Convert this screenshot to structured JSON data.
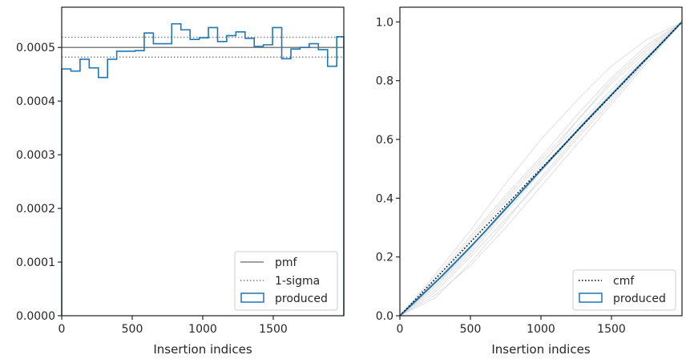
{
  "chart_data": [
    {
      "type": "line",
      "xlabel": "Insertion indices",
      "ylabel": "",
      "xlim": [
        0,
        2000
      ],
      "ylim": [
        0,
        0.000575
      ],
      "xticks": [
        0,
        500,
        1000,
        1500
      ],
      "yticks": [
        0.0,
        0.0001,
        0.0002,
        0.0003,
        0.0004,
        0.0005
      ],
      "ytick_labels": [
        "0.0000",
        "0.0001",
        "0.0002",
        "0.0003",
        "0.0004",
        "0.0005"
      ],
      "legend_position": "lower-right",
      "legend": [
        {
          "label": "pmf",
          "style": "solid",
          "color": "#808080"
        },
        {
          "label": "1-sigma",
          "style": "dotted",
          "color": "#808080"
        },
        {
          "label": "produced",
          "style": "step-patch",
          "color": "#1f77b4"
        }
      ],
      "pmf": 0.0005,
      "sigma_band": [
        0.000482,
        0.000519
      ],
      "histogram": {
        "bin_edges": [
          0,
          65,
          130,
          195,
          260,
          325,
          390,
          455,
          520,
          585,
          650,
          715,
          780,
          845,
          910,
          975,
          1040,
          1105,
          1170,
          1235,
          1300,
          1365,
          1430,
          1495,
          1560,
          1625,
          1690,
          1755,
          1820,
          1885,
          1950,
          2000
        ],
        "values": [
          0.00046,
          0.000456,
          0.000478,
          0.000462,
          0.000444,
          0.000478,
          0.000493,
          0.000493,
          0.000494,
          0.000527,
          0.000507,
          0.000507,
          0.000544,
          0.000533,
          0.000515,
          0.000518,
          0.000537,
          0.000511,
          0.000522,
          0.000529,
          0.000517,
          0.000502,
          0.000505,
          0.000537,
          0.000479,
          0.000497,
          0.0005,
          0.000507,
          0.000496,
          0.000465,
          0.00052
        ],
        "color": "#1f77b4"
      }
    },
    {
      "type": "line",
      "xlabel": "Insertion indices",
      "ylabel": "",
      "xlim": [
        0,
        2000
      ],
      "ylim": [
        0,
        1.05
      ],
      "xticks": [
        0,
        500,
        1000,
        1500
      ],
      "yticks": [
        0.0,
        0.2,
        0.4,
        0.6,
        0.8,
        1.0
      ],
      "ytick_labels": [
        "0.0",
        "0.2",
        "0.4",
        "0.6",
        "0.8",
        "1.0"
      ],
      "legend_position": "lower-right",
      "legend": [
        {
          "label": "cmf",
          "style": "dotted",
          "color": "#000000"
        },
        {
          "label": "produced",
          "style": "patch",
          "color": "#1f77b4"
        }
      ],
      "cmf": {
        "x": [
          0,
          2000
        ],
        "y": [
          0,
          1
        ]
      },
      "produced": {
        "x": [
          0,
          100,
          200,
          300,
          400,
          500,
          600,
          700,
          800,
          900,
          1000,
          1100,
          1200,
          1300,
          1400,
          1500,
          1600,
          1700,
          1800,
          1900,
          2000
        ],
        "y": [
          0,
          0.045,
          0.09,
          0.136,
          0.185,
          0.234,
          0.285,
          0.338,
          0.39,
          0.443,
          0.496,
          0.548,
          0.6,
          0.652,
          0.702,
          0.752,
          0.802,
          0.852,
          0.9,
          0.95,
          1.0
        ],
        "color": "#1f77b4"
      },
      "background_curves": {
        "color": "#d3d3d3",
        "x": [
          0,
          250,
          500,
          750,
          1000,
          1250,
          1500,
          1750,
          2000
        ],
        "curves": [
          [
            0,
            0.14,
            0.29,
            0.45,
            0.6,
            0.73,
            0.85,
            0.94,
            1
          ],
          [
            0,
            0.1,
            0.22,
            0.36,
            0.5,
            0.63,
            0.76,
            0.88,
            1
          ],
          [
            0,
            0.08,
            0.2,
            0.33,
            0.46,
            0.6,
            0.73,
            0.87,
            1
          ],
          [
            0,
            0.12,
            0.26,
            0.4,
            0.53,
            0.66,
            0.79,
            0.9,
            1
          ],
          [
            0,
            0.1,
            0.23,
            0.37,
            0.51,
            0.66,
            0.8,
            0.91,
            1
          ],
          [
            0,
            0.07,
            0.17,
            0.3,
            0.44,
            0.58,
            0.72,
            0.86,
            1
          ],
          [
            0,
            0.11,
            0.25,
            0.39,
            0.52,
            0.64,
            0.77,
            0.89,
            1
          ],
          [
            0,
            0.09,
            0.21,
            0.35,
            0.49,
            0.62,
            0.75,
            0.88,
            1
          ],
          [
            0,
            0.13,
            0.27,
            0.41,
            0.54,
            0.68,
            0.81,
            0.92,
            1
          ],
          [
            0,
            0.06,
            0.18,
            0.32,
            0.47,
            0.61,
            0.74,
            0.87,
            1
          ]
        ]
      }
    }
  ]
}
